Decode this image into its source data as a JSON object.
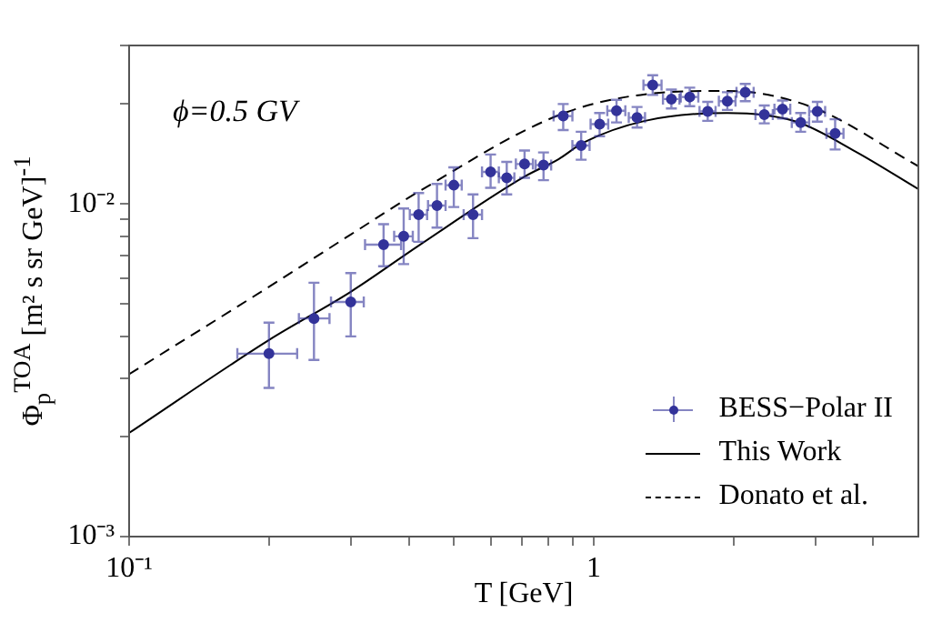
{
  "chart_data": {
    "type": "scatter",
    "xlabel": "T  [GeV]",
    "ylabel": "Φ$_{p}$$^{TOA}$ [m² s sr GeV]$^{-1}$",
    "annotations": [
      "ϕ=0.5 GV"
    ],
    "log": "xy",
    "legend": "bottom right",
    "xlim": [
      0.1,
      5
    ],
    "xticks": [
      {
        "value": 0.1,
        "label": "10⁻¹"
      },
      {
        "value": 0.2,
        "label": null
      },
      {
        "value": 0.3,
        "label": null
      },
      {
        "value": 0.4,
        "label": null
      },
      {
        "value": 0.5,
        "label": null
      },
      {
        "value": 0.6,
        "label": null
      },
      {
        "value": 0.7,
        "label": null
      },
      {
        "value": 0.8,
        "label": null
      },
      {
        "value": 0.9,
        "label": null
      },
      1,
      {
        "value": 2,
        "label": null
      },
      {
        "value": 3,
        "label": null
      },
      {
        "value": 4,
        "label": null
      }
    ],
    "ylim": [
      0.001,
      0.03
    ],
    "yticks": [
      {
        "value": 0.001,
        "label": "10⁻³"
      },
      {
        "value": 0.002,
        "label": null
      },
      {
        "value": 0.003,
        "label": null
      },
      {
        "value": 0.004,
        "label": null
      },
      {
        "value": 0.005,
        "label": null
      },
      {
        "value": 0.006,
        "label": null
      },
      {
        "value": 0.007,
        "label": null
      },
      {
        "value": 0.008,
        "label": null
      },
      {
        "value": 0.009,
        "label": null
      },
      {
        "value": 0.01,
        "label": "10⁻²"
      },
      {
        "value": 0.02,
        "label": null
      },
      {
        "value": 0.03,
        "label": null
      }
    ],
    "series": [
      {
        "name": "BESS−Polar II",
        "type": "scatter",
        "color": "#33339a",
        "marker": "circle",
        "x": [
          0.2,
          0.25,
          0.3,
          0.353,
          0.39,
          0.42,
          0.46,
          0.5,
          0.55,
          0.6,
          0.65,
          0.71,
          0.78,
          0.86,
          0.94,
          1.03,
          1.12,
          1.24,
          1.34,
          1.47,
          1.61,
          1.76,
          1.94,
          2.12,
          2.33,
          2.55,
          2.79,
          3.03,
          3.31
        ],
        "values": [
          0.00355,
          0.00453,
          0.00508,
          0.00755,
          0.008,
          0.0093,
          0.0099,
          0.0114,
          0.0093,
          0.0125,
          0.012,
          0.0132,
          0.0131,
          0.0184,
          0.015,
          0.0174,
          0.0191,
          0.0182,
          0.0228,
          0.0207,
          0.021,
          0.019,
          0.0204,
          0.0217,
          0.0186,
          0.0193,
          0.0176,
          0.019,
          0.0163
        ],
        "errors": [
          [
            0.0028,
            0.0044
          ],
          [
            0.0034,
            0.0058
          ],
          [
            0.004,
            0.0062
          ],
          [
            0.0065,
            0.0087
          ],
          [
            0.0066,
            0.0097
          ],
          [
            0.0077,
            0.0108
          ],
          [
            0.0085,
            0.0115
          ],
          [
            0.0098,
            0.0129
          ],
          [
            0.0079,
            0.0107
          ],
          [
            0.0112,
            0.0141
          ],
          [
            0.0107,
            0.0134
          ],
          [
            0.012,
            0.0145
          ],
          [
            0.0118,
            0.0143
          ],
          [
            0.0167,
            0.02
          ],
          [
            0.0136,
            0.0165
          ],
          [
            0.016,
            0.0188
          ],
          [
            0.0176,
            0.0206
          ],
          [
            0.017,
            0.0196
          ],
          [
            0.0213,
            0.0244
          ],
          [
            0.0194,
            0.0221
          ],
          [
            0.0197,
            0.0224
          ],
          [
            0.0178,
            0.0203
          ],
          [
            0.0192,
            0.0217
          ],
          [
            0.0204,
            0.023
          ],
          [
            0.0175,
            0.0198
          ],
          [
            0.0181,
            0.0205
          ],
          [
            0.0165,
            0.0188
          ],
          [
            0.0177,
            0.0203
          ],
          [
            0.0146,
            0.018
          ]
        ],
        "xerrors": [
          [
            0.171,
            0.23
          ],
          [
            0.232,
            0.27
          ],
          [
            0.272,
            0.32
          ],
          [
            0.322,
            0.385
          ],
          0.018,
          0.018,
          0.02,
          0.02,
          0.025,
          0.025,
          0.025,
          0.03,
          0.03,
          0.04,
          0.04,
          0.045,
          0.05,
          0.05,
          0.06,
          0.06,
          0.07,
          0.07,
          0.08,
          0.09,
          0.1,
          0.1,
          0.12,
          0.12,
          0.14
        ]
      },
      {
        "name": "This Work",
        "type": "line",
        "color": "#000000",
        "line_style": "solid",
        "marker": "none",
        "x": [
          0.1,
          0.2,
          0.3,
          0.42,
          0.71,
          0.84,
          0.95,
          1.29,
          1.94,
          2.73,
          3.66,
          5
        ],
        "values": [
          0.00205,
          0.0039,
          0.00545,
          0.0075,
          0.0121,
          0.01365,
          0.0153,
          0.0178,
          0.0188,
          0.0177,
          0.0144,
          0.0111
        ]
      },
      {
        "name": "Donato et al.",
        "type": "line",
        "color": "#000000",
        "line_style": "dashed",
        "marker": "none",
        "x": [
          0.1,
          0.2,
          0.3,
          0.42,
          0.84,
          1.29,
          1.94,
          2.97,
          5
        ],
        "values": [
          0.00308,
          0.00564,
          0.0081,
          0.0109,
          0.0185,
          0.0214,
          0.0219,
          0.0195,
          0.013
        ]
      }
    ]
  }
}
